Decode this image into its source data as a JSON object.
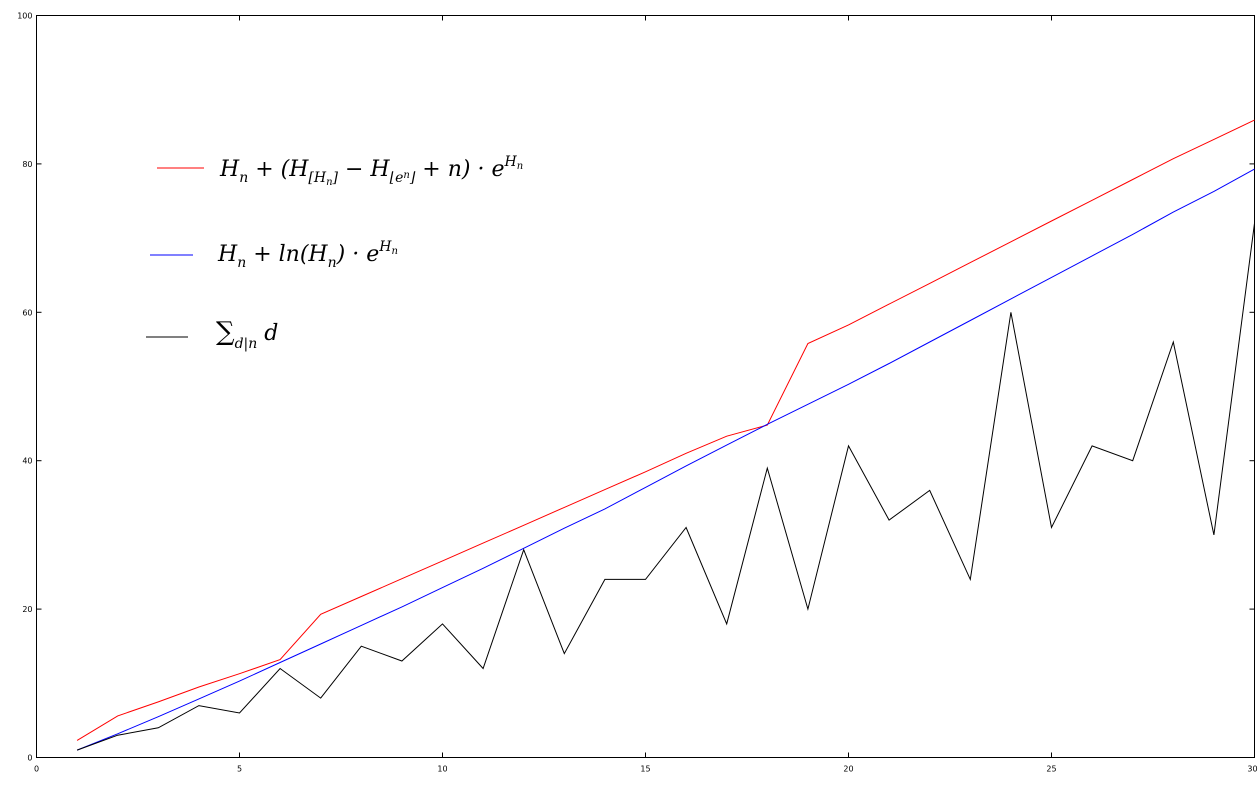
{
  "chart_data": {
    "type": "line",
    "title": "",
    "xlabel": "",
    "ylabel": "",
    "xlim": [
      0,
      30
    ],
    "ylim": [
      0,
      100
    ],
    "x_ticks": [
      "0",
      "5",
      "10",
      "15",
      "20",
      "25",
      "30"
    ],
    "y_ticks": [
      "0",
      "20",
      "40",
      "60",
      "80",
      "100"
    ],
    "grid": false,
    "legend_position": "top-left",
    "x": [
      1,
      2,
      3,
      4,
      5,
      6,
      7,
      8,
      9,
      10,
      11,
      12,
      13,
      14,
      15,
      16,
      17,
      18,
      19,
      20,
      21,
      22,
      23,
      24,
      25,
      26,
      27,
      28,
      29,
      30
    ],
    "series": [
      {
        "name": "H_n + (H_[H_n] − H_⌊e^n⌋ + n) · e^{H_n}",
        "color": "#ff0000",
        "values": [
          2.3,
          5.6,
          7.5,
          9.5,
          11.3,
          13.2,
          19.3,
          21.7,
          24.1,
          26.5,
          28.9,
          31.3,
          33.7,
          36.1,
          38.5,
          41.0,
          43.3,
          44.8,
          55.8,
          58.3,
          61.1,
          63.9,
          66.7,
          69.5,
          72.3,
          75.1,
          77.9,
          80.7,
          83.3,
          85.9
        ],
        "legend_parts": [
          "H",
          "n",
          " + (H",
          "[H",
          "n",
          "]",
          " − H",
          "⌊e",
          "n",
          "⌋",
          " + n) · e",
          "H",
          "n"
        ]
      },
      {
        "name": "H_n + ln(H_n) · e^{H_n}",
        "color": "#0000ff",
        "values": [
          1.0,
          3.2,
          5.5,
          7.9,
          10.3,
          12.8,
          15.3,
          17.8,
          20.3,
          22.9,
          25.5,
          28.2,
          30.9,
          33.5,
          36.4,
          39.3,
          42.1,
          44.9,
          47.6,
          50.3,
          53.1,
          56.0,
          58.9,
          61.8,
          64.7,
          67.6,
          70.5,
          73.5,
          76.3,
          79.3
        ],
        "legend_parts": [
          "H",
          "n",
          " + ln(H",
          "n",
          ") · e",
          "H",
          "n"
        ]
      },
      {
        "name": "Σ_{d|n} d",
        "color": "#000000",
        "values": [
          1,
          3,
          4,
          7,
          6,
          12,
          8,
          15,
          13,
          18,
          12,
          28,
          14,
          24,
          24,
          31,
          18,
          39,
          20,
          42,
          32,
          36,
          24,
          60,
          31,
          42,
          40,
          56,
          30,
          72
        ],
        "legend_parts": [
          "∑",
          "d|n",
          " d"
        ]
      }
    ]
  }
}
